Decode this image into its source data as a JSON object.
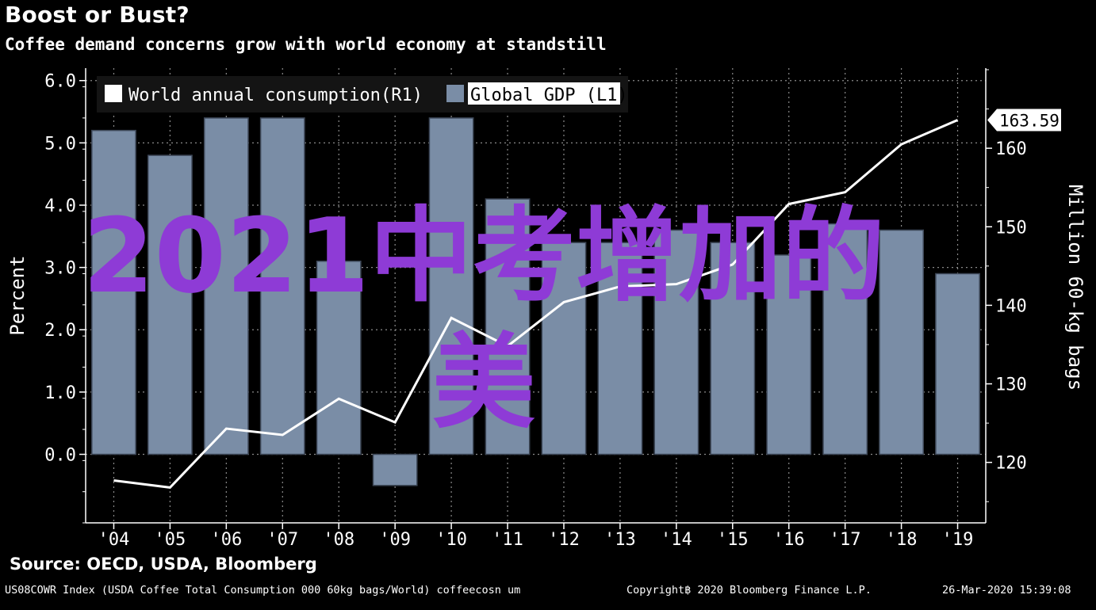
{
  "chart_data": {
    "type": "bar",
    "title": "Boost or Bust?",
    "subtitle": "Coffee demand concerns grow with world economy at standstill",
    "categories": [
      "'04",
      "'05",
      "'06",
      "'07",
      "'08",
      "'09",
      "'10",
      "'11",
      "'12",
      "'13",
      "'14",
      "'15",
      "'16",
      "'17",
      "'18",
      "'19"
    ],
    "series": [
      {
        "name": "Global GDP (L1)",
        "kind": "bar",
        "axis": "left",
        "color": "#7a8da6",
        "values": [
          5.2,
          4.8,
          5.4,
          5.4,
          3.1,
          -0.5,
          5.4,
          4.1,
          3.4,
          3.4,
          3.6,
          3.4,
          3.2,
          3.7,
          3.6,
          2.9
        ]
      },
      {
        "name": "World annual consumption",
        "legend_suffix": "(R1)",
        "kind": "line",
        "axis": "right",
        "color": "#ffffff",
        "values": [
          117.7,
          116.8,
          124.3,
          123.5,
          128.1,
          125.1,
          138.4,
          134.8,
          140.4,
          142.4,
          142.7,
          145.2,
          152.9,
          154.4,
          160.5,
          163.59
        ]
      }
    ],
    "last_value_label": "163.59",
    "ylabel_left": "Percent",
    "ylabel_right": "Million 60-kg bags",
    "ylim_left": [
      -1.1,
      6.2
    ],
    "ylim_right": [
      112.3,
      170.2
    ],
    "left_ticks": [
      "6.0",
      "5.0",
      "4.0",
      "3.0",
      "2.0",
      "1.0",
      "0.0"
    ],
    "left_tick_values": [
      6,
      5,
      4,
      3,
      2,
      1,
      0
    ],
    "right_ticks": [
      "160",
      "150",
      "140",
      "130",
      "120"
    ],
    "right_tick_values": [
      160,
      150,
      140,
      130,
      120
    ],
    "grid": true,
    "legend_position": "top-left"
  },
  "source": "Source: OECD, USDA, Bloomberg",
  "footer": {
    "left": "US08COWR Index (USDA Coffee Total Consumption 000 60kg bags/World) coffeecosn um",
    "middle": "Copyright฿ 2020 Bloomberg Finance L.P.",
    "right": "26-Mar-2020 15:39:08"
  },
  "overlay": {
    "line1": "2021中考增加的",
    "line2": "美"
  },
  "colors": {
    "background": "#000000",
    "bar": "#7a8da6",
    "line": "#ffffff",
    "grid": "#8a8a8a",
    "overlay_text": "#8e3bd6"
  }
}
